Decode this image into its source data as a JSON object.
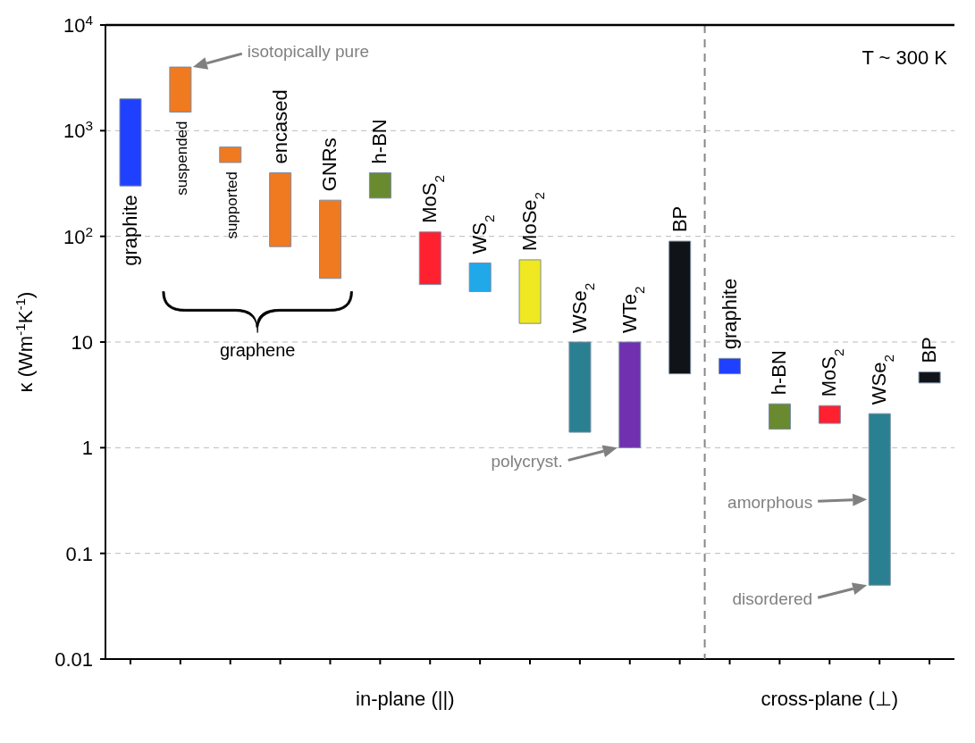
{
  "chart_data": {
    "type": "bar",
    "ylabel": "κ (Wm$^{-1}$K$^{-1}$)",
    "categories": [
      "graphite",
      "suspended",
      "supported",
      "encased",
      "GNRs",
      "h-BN",
      "MoS$_{2}$",
      "WS$_{2}$",
      "MoSe$_{2}$",
      "WSe$_{2}$",
      "WTe$_{2}$",
      "BP",
      "graphite",
      "h-BN",
      "MoS$_{2}$",
      "WSe$_{2}$",
      "BP"
    ],
    "base": [
      300,
      1500,
      500,
      80,
      40,
      230,
      35,
      30,
      15,
      1.4,
      1,
      5,
      5,
      1.5,
      1.7,
      0.05,
      4.1
    ],
    "values": [
      1700,
      2500,
      200,
      320,
      180,
      170,
      75,
      26,
      45,
      8.6,
      9,
      85,
      2,
      1.1,
      0.8,
      2.05,
      1.1
    ],
    "colors": [
      "#2040ff",
      "#f07a20",
      "#f07a20",
      "#f07a20",
      "#f07a20",
      "#6a8a30",
      "#ff2030",
      "#20a8e8",
      "#f0e820",
      "#2a8090",
      "#7030b0",
      "#101418",
      "#2040ff",
      "#6a8a30",
      "#ff2030",
      "#2a8090",
      "#101418"
    ],
    "log": true,
    "ylim": [
      0.01,
      10000
    ],
    "yticks": [
      0.01,
      0.1,
      1,
      10,
      {
        "value": 100,
        "label": "10$^{2}$"
      },
      {
        "value": 1000,
        "label": "10$^{3}$"
      },
      {
        "value": 10000,
        "label": "10$^{4}$"
      }
    ],
    "grid": "y",
    "tick_labels": "y",
    "annotations": [
      "isotopically pure",
      "polycryst.",
      "amorphous",
      "disordered",
      "graphene",
      "T ~ 300 K",
      "in-plane (||)",
      "cross-plane (⊥)"
    ]
  }
}
